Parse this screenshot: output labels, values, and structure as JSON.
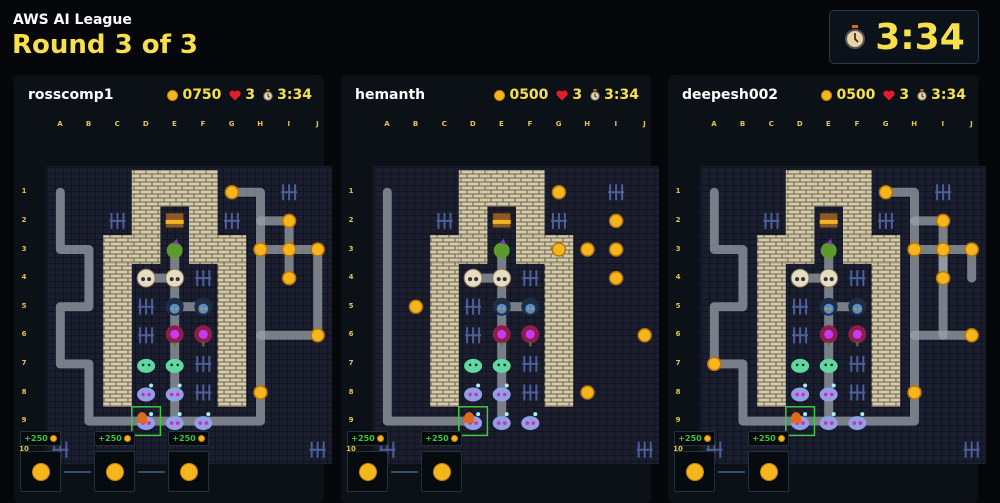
{
  "header": {
    "league": "AWS AI League",
    "round": "Round 3 of 3"
  },
  "timer": {
    "icon": "stopwatch-icon",
    "value": "3:34"
  },
  "columns": [
    "A",
    "B",
    "C",
    "D",
    "E",
    "F",
    "G",
    "H",
    "I",
    "J"
  ],
  "rows": [
    "1",
    "2",
    "3",
    "4",
    "5",
    "6",
    "7",
    "8",
    "9",
    "10"
  ],
  "walls": [
    "D1",
    "E1",
    "F1",
    "D2",
    "F2",
    "C3",
    "D3",
    "F3",
    "G3",
    "C4",
    "G4",
    "C5",
    "G5",
    "C6",
    "G6",
    "C7",
    "G7",
    "C8",
    "G8"
  ],
  "monsters": {
    "chest": [
      "E2"
    ],
    "goblin": [
      "E3"
    ],
    "skull": [
      "D4",
      "E4"
    ],
    "hooded": [
      "E5",
      "F5"
    ],
    "flower": [
      "E6",
      "F6"
    ],
    "slime": [
      "D7",
      "E7"
    ],
    "blob": [
      "D8",
      "E8",
      "D9",
      "E9",
      "F9"
    ]
  },
  "colors": {
    "accent": "#f7e04b",
    "gain": "#3ec43e",
    "selection": "#3ecb3e"
  },
  "players": [
    {
      "name": "rosscomp1",
      "score": "0750",
      "lives": "3",
      "time": "3:34",
      "player_cell": "D9",
      "coins": [
        "G1",
        "I2",
        "H3",
        "I3",
        "J3",
        "I4",
        "J6",
        "H8"
      ],
      "spikes": [
        "I1",
        "C2",
        "G2",
        "F4",
        "D5",
        "D6",
        "F7",
        "F8",
        "A10",
        "J10"
      ],
      "rewards": [
        {
          "label": "+250"
        },
        {
          "label": "+250"
        },
        {
          "label": "+250"
        }
      ]
    },
    {
      "name": "hemanth",
      "score": "0500",
      "lives": "3",
      "time": "3:34",
      "player_cell": "D9",
      "coins": [
        "G1",
        "I2",
        "G3",
        "H3",
        "I3",
        "I4",
        "B5",
        "J6",
        "H8"
      ],
      "spikes": [
        "I1",
        "C2",
        "G2",
        "F4",
        "D5",
        "D6",
        "F7",
        "F8",
        "A10",
        "J10"
      ],
      "rewards": [
        {
          "label": "+250"
        },
        {
          "label": "+250"
        }
      ]
    },
    {
      "name": "deepesh002",
      "score": "0500",
      "lives": "3",
      "time": "3:34",
      "player_cell": "D9",
      "coins": [
        "G1",
        "I2",
        "H3",
        "I3",
        "J3",
        "I4",
        "J6",
        "A7",
        "H8"
      ],
      "spikes": [
        "I1",
        "C2",
        "G2",
        "F4",
        "D5",
        "D6",
        "F7",
        "F8",
        "A10",
        "J10"
      ],
      "rewards": [
        {
          "label": "+250"
        },
        {
          "label": "+250"
        }
      ]
    }
  ]
}
